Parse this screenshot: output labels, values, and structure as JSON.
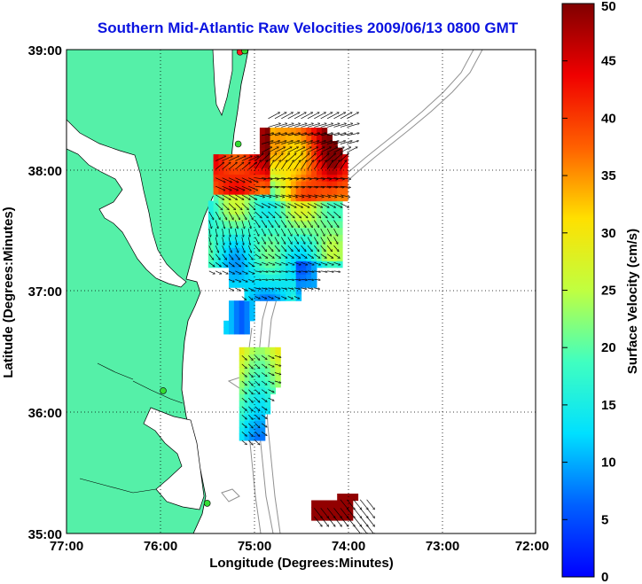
{
  "title": "Southern Mid-Atlantic Raw Velocities 2009/06/13 0800 GMT",
  "map": {
    "xlabel": "Longitude (Degrees:Minutes)",
    "ylabel": "Latitude (Degrees:Minutes)",
    "lon_range": [
      -77,
      -72
    ],
    "lat_range": [
      35,
      39
    ],
    "lon_ticks": [
      "77:00",
      "76:00",
      "75:00",
      "74:00",
      "73:00",
      "72:00"
    ],
    "lat_ticks": [
      "39:00",
      "38:00",
      "37:00",
      "36:00",
      "35:00"
    ],
    "grid": "dotted",
    "land_color": "#55f0a8",
    "coastline_color": "#000000",
    "bathymetry_color": "#909090",
    "stations": [
      {
        "lon": -75.15,
        "lat": 38.98,
        "color": "#ff2020"
      },
      {
        "lon": -75.1,
        "lat": 38.99,
        "color": "#33dd33"
      },
      {
        "lon": -75.17,
        "lat": 38.22,
        "color": "#33dd33"
      },
      {
        "lon": -75.97,
        "lat": 36.18,
        "color": "#33dd33"
      },
      {
        "lon": -75.5,
        "lat": 35.25,
        "color": "#33dd33"
      }
    ]
  },
  "colorbar": {
    "label": "Surface Velocity (cm/s)",
    "min": 0,
    "max": 50,
    "ticks": [
      "0",
      "5",
      "10",
      "15",
      "20",
      "25",
      "30",
      "35",
      "40",
      "45",
      "50"
    ]
  },
  "chart_data": {
    "type": "heatmap",
    "title": "Southern Mid-Atlantic Raw Velocities 2009/06/13 0800 GMT",
    "xlabel": "Longitude (Degrees:Minutes)",
    "ylabel": "Latitude (Degrees:Minutes)",
    "value_label": "Surface Velocity (cm/s)",
    "xlim": [
      -77,
      -72
    ],
    "ylim": [
      35,
      39
    ],
    "clim": [
      0,
      50
    ],
    "regions": [
      {
        "name_hint": "",
        "lon": [
          -75.5,
          -74.05
        ],
        "lat": [
          36.9,
          38.3
        ],
        "speed_cm_s": [
          5,
          50
        ]
      },
      {
        "name_hint": "",
        "lon": [
          -75.2,
          -74.7
        ],
        "lat": [
          35.7,
          36.5
        ],
        "speed_cm_s": [
          8,
          28
        ]
      },
      {
        "name_hint": "",
        "lon": [
          -74.35,
          -73.9
        ],
        "lat": [
          35.08,
          35.3
        ],
        "speed_cm_s": [
          48,
          50
        ]
      }
    ]
  }
}
